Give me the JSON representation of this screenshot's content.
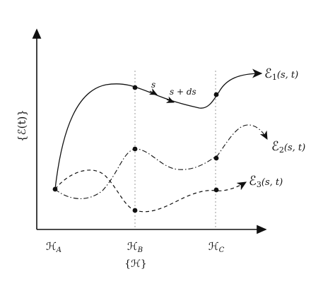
{
  "axes": {
    "y_label": "{ℰ(t)}",
    "x_label": "{ℋ}"
  },
  "x_ticks": [
    {
      "base": "ℋ",
      "sub": "A"
    },
    {
      "base": "ℋ",
      "sub": "B"
    },
    {
      "base": "ℋ",
      "sub": "C"
    }
  ],
  "curves": [
    {
      "base": "ℰ",
      "sub": "1",
      "args": "(s, t)",
      "style": "solid"
    },
    {
      "base": "ℰ",
      "sub": "2",
      "args": "(s, t)",
      "style": "dash-dot"
    },
    {
      "base": "ℰ",
      "sub": "3",
      "args": "(s, t)",
      "style": "dashed"
    }
  ],
  "annotations": {
    "s": "s",
    "s_plus_ds": "s + ds"
  },
  "colors": {
    "ink": "#111111",
    "guide": "#9a9a9a",
    "background": "#ffffff"
  }
}
